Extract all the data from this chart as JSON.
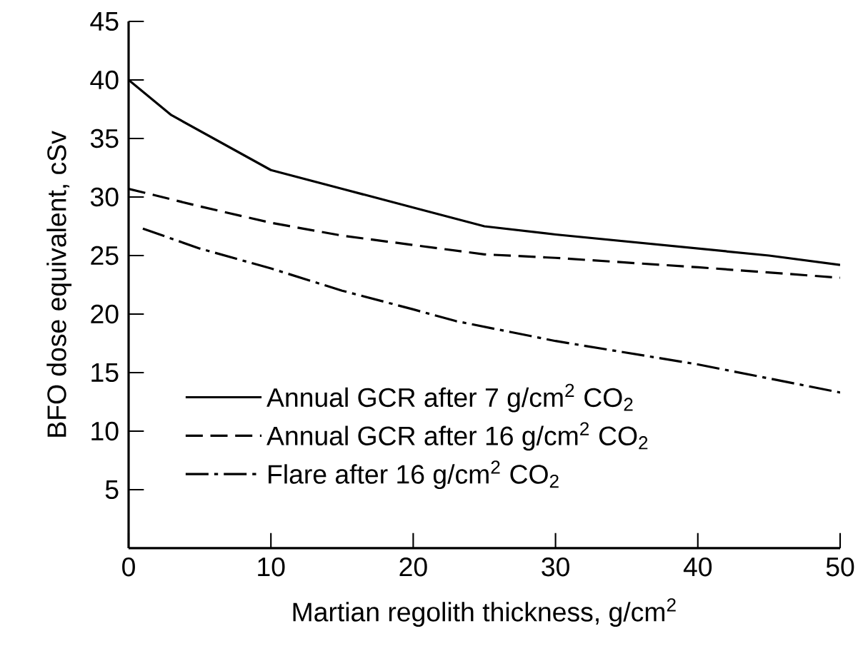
{
  "chart_data": {
    "type": "line",
    "xlabel": "Martian regolith thickness, g/cm$^{2}$",
    "ylabel": "BFO dose equivalent, cSv",
    "xlim": [
      0,
      50
    ],
    "ylim": [
      0,
      45
    ],
    "xticks": [
      0,
      10,
      20,
      30,
      40,
      50
    ],
    "yticks": [
      5,
      10,
      15,
      20,
      25,
      30,
      35,
      40,
      45
    ],
    "grid": false,
    "legend": "bottom left",
    "marker": "none",
    "series": [
      {
        "name": "Annual GCR after 7 g/cm$^{2}$ CO$_{2}$",
        "color": "#000000",
        "line_style": "solid",
        "x": [
          0,
          3,
          10,
          15,
          20,
          25,
          30,
          40,
          45,
          50
        ],
        "values": [
          40,
          37,
          32.3,
          30.7,
          29.1,
          27.5,
          26.8,
          25.6,
          25.0,
          24.2
        ]
      },
      {
        "name": "Annual GCR after 16 g/cm$^{2}$ CO$_{2}$",
        "color": "#000000",
        "line_style": "dashed",
        "x": [
          0,
          5,
          10,
          15,
          20,
          25,
          30,
          40,
          50
        ],
        "values": [
          30.7,
          29.2,
          27.8,
          26.7,
          25.9,
          25.1,
          24.8,
          24.0,
          23.1
        ]
      },
      {
        "name": "Flare after 16 g/cm$^{2}$ CO$_{2}$",
        "color": "#000000",
        "line_style": "dashdot",
        "x": [
          1,
          5,
          10,
          15,
          20,
          23,
          30,
          40,
          50
        ],
        "values": [
          27.3,
          25.6,
          23.9,
          22.0,
          20.4,
          19.4,
          17.7,
          15.7,
          13.3
        ]
      }
    ]
  }
}
